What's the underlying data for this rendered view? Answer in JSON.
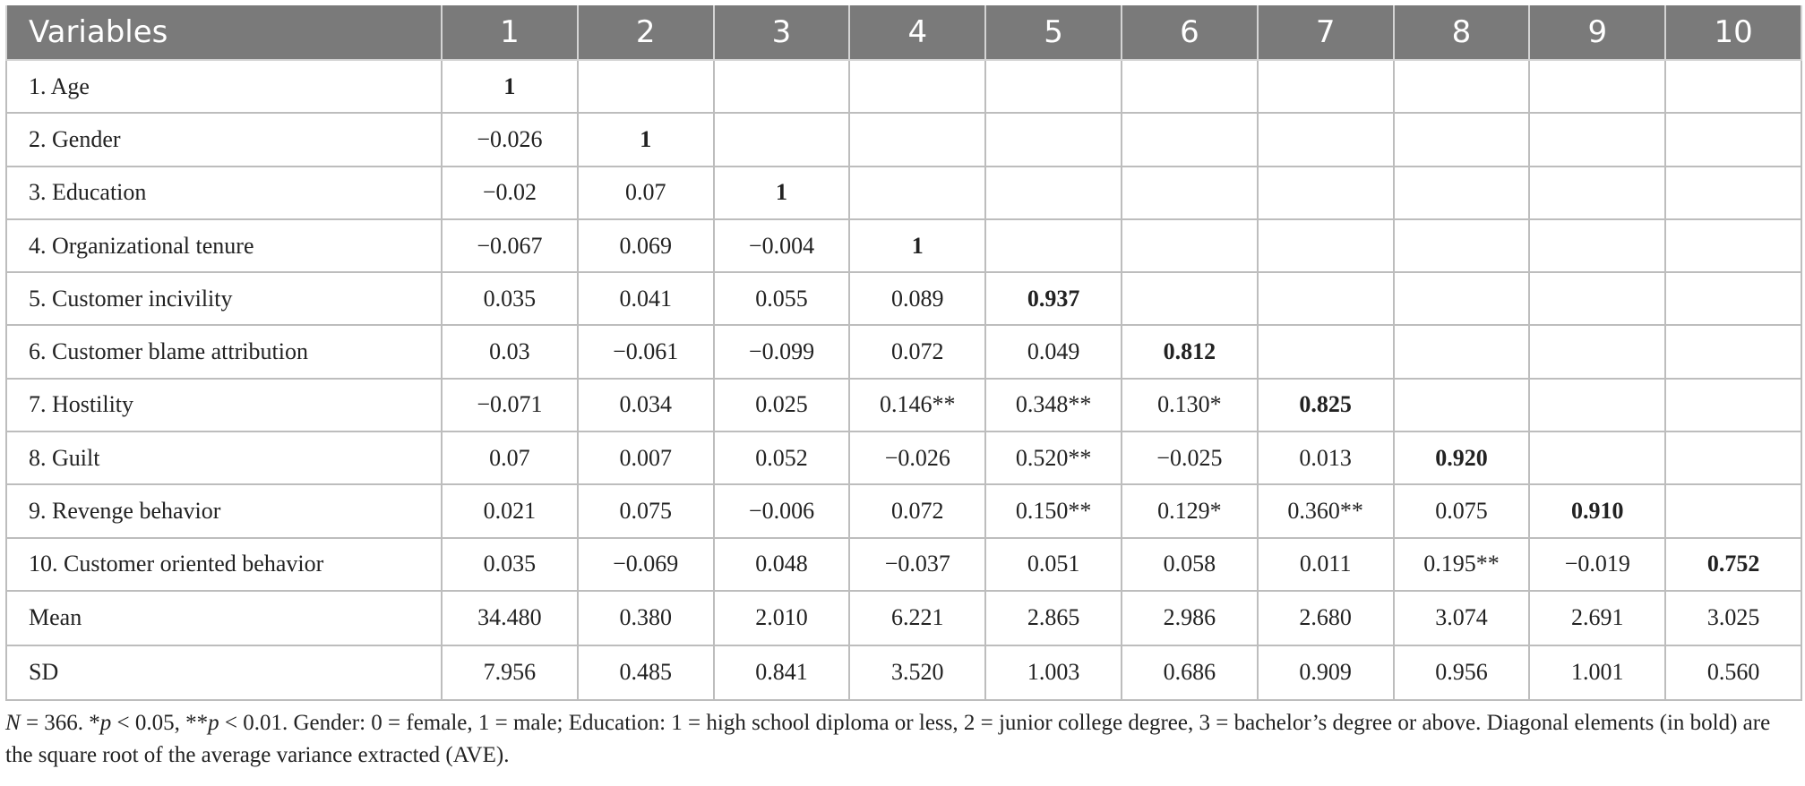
{
  "table": {
    "header_label": "Variables",
    "columns": [
      "1",
      "2",
      "3",
      "4",
      "5",
      "6",
      "7",
      "8",
      "9",
      "10"
    ],
    "rows": [
      {
        "label": "1. Age",
        "cells": [
          "1",
          "",
          "",
          "",
          "",
          "",
          "",
          "",
          "",
          ""
        ],
        "diag": 0
      },
      {
        "label": "2. Gender",
        "cells": [
          "−0.026",
          "1",
          "",
          "",
          "",
          "",
          "",
          "",
          "",
          ""
        ],
        "diag": 1
      },
      {
        "label": "3. Education",
        "cells": [
          "−0.02",
          "0.07",
          "1",
          "",
          "",
          "",
          "",
          "",
          "",
          ""
        ],
        "diag": 2
      },
      {
        "label": "4. Organizational tenure",
        "cells": [
          "−0.067",
          "0.069",
          "−0.004",
          "1",
          "",
          "",
          "",
          "",
          "",
          ""
        ],
        "diag": 3
      },
      {
        "label": "5. Customer incivility",
        "cells": [
          "0.035",
          "0.041",
          "0.055",
          "0.089",
          "0.937",
          "",
          "",
          "",
          "",
          ""
        ],
        "diag": 4
      },
      {
        "label": "6. Customer blame attribution",
        "cells": [
          "0.03",
          "−0.061",
          "−0.099",
          "0.072",
          "0.049",
          "0.812",
          "",
          "",
          "",
          ""
        ],
        "diag": 5
      },
      {
        "label": "7. Hostility",
        "cells": [
          "−0.071",
          "0.034",
          "0.025",
          "0.146**",
          "0.348**",
          "0.130*",
          "0.825",
          "",
          "",
          ""
        ],
        "diag": 6
      },
      {
        "label": "8. Guilt",
        "cells": [
          "0.07",
          "0.007",
          "0.052",
          "−0.026",
          "0.520**",
          "−0.025",
          "0.013",
          "0.920",
          "",
          ""
        ],
        "diag": 7
      },
      {
        "label": "9. Revenge behavior",
        "cells": [
          "0.021",
          "0.075",
          "−0.006",
          "0.072",
          "0.150**",
          "0.129*",
          "0.360**",
          "0.075",
          "0.910",
          ""
        ],
        "diag": 8
      },
      {
        "label": "10. Customer oriented behavior",
        "cells": [
          "0.035",
          "−0.069",
          "0.048",
          "−0.037",
          "0.051",
          "0.058",
          "0.011",
          "0.195**",
          "−0.019",
          "0.752"
        ],
        "diag": 9
      },
      {
        "label": "Mean",
        "cells": [
          "34.480",
          "0.380",
          "2.010",
          "6.221",
          "2.865",
          "2.986",
          "2.680",
          "3.074",
          "2.691",
          "3.025"
        ],
        "diag": -1,
        "stat": true
      },
      {
        "label": "SD",
        "cells": [
          "7.956",
          "0.485",
          "0.841",
          "3.520",
          "1.003",
          "0.686",
          "0.909",
          "0.956",
          "1.001",
          "0.560"
        ],
        "diag": -1,
        "stat": true
      }
    ]
  },
  "footnote": {
    "n_label": "N",
    "text_1": " = 366. *",
    "p1": "p",
    "text_2": " < 0.05, **",
    "p2": "p",
    "text_3": " < 0.01. Gender: 0 = female, 1 = male; Education: 1 = high school diploma or less, 2 = junior college degree, 3 = bachelor’s degree or above. Diagonal elements (in bold) are the square root of the average variance extracted (AVE)."
  }
}
